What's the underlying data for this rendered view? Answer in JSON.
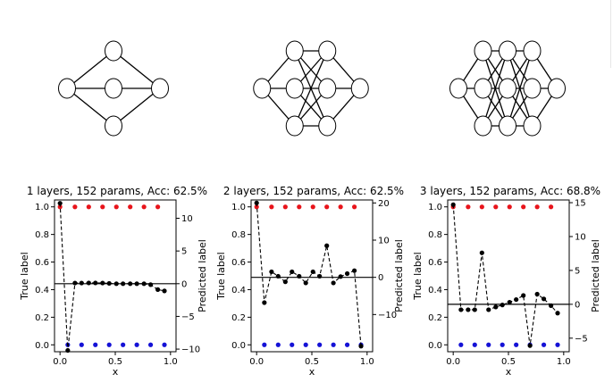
{
  "colors": {
    "line": "#000000",
    "true_class1": "#e8141b",
    "true_class0": "#1512d6",
    "pred_marker": "#000000",
    "node_fill": "#ffffff"
  },
  "networks": [
    {
      "layers": [
        1,
        3,
        1
      ]
    },
    {
      "layers": [
        1,
        3,
        3,
        1
      ]
    },
    {
      "layers": [
        1,
        3,
        3,
        3,
        1
      ]
    }
  ],
  "chart_data": [
    {
      "type": "scatter",
      "title": "1 layers, 152 params, Acc: 62.5%",
      "xlabel": "x",
      "ylabel": "True label",
      "y2label": "Predicted label",
      "xlim": [
        -0.05,
        1.05
      ],
      "ylim": [
        -0.05,
        1.05
      ],
      "y2lim": [
        -10.4,
        12.8
      ],
      "xticks": [
        "0.0",
        "0.5",
        "1.0"
      ],
      "xtick_values": [
        0.0,
        0.5,
        1.0
      ],
      "yticks": [
        "0.0",
        "0.2",
        "0.4",
        "0.6",
        "0.8",
        "1.0"
      ],
      "ytick_values": [
        0.0,
        0.2,
        0.4,
        0.6,
        0.8,
        1.0
      ],
      "y2ticks": [
        "−10",
        "−5",
        "0",
        "5",
        "10"
      ],
      "y2tick_values": [
        -10,
        -5,
        0,
        5,
        10
      ],
      "threshold": 0.0,
      "true_points": [
        {
          "x": 0.0,
          "y": 1.0
        },
        {
          "x": 0.135,
          "y": 1.0
        },
        {
          "x": 0.26,
          "y": 1.0
        },
        {
          "x": 0.385,
          "y": 1.0
        },
        {
          "x": 0.51,
          "y": 1.0
        },
        {
          "x": 0.635,
          "y": 1.0
        },
        {
          "x": 0.76,
          "y": 1.0
        },
        {
          "x": 0.885,
          "y": 1.0
        },
        {
          "x": 0.07,
          "y": 0.0
        },
        {
          "x": 0.195,
          "y": 0.0
        },
        {
          "x": 0.32,
          "y": 0.0
        },
        {
          "x": 0.445,
          "y": 0.0
        },
        {
          "x": 0.57,
          "y": 0.0
        },
        {
          "x": 0.695,
          "y": 0.0
        },
        {
          "x": 0.82,
          "y": 0.0
        },
        {
          "x": 0.945,
          "y": 0.0
        }
      ],
      "predicted": {
        "x": [
          0.0,
          0.07,
          0.135,
          0.195,
          0.26,
          0.32,
          0.385,
          0.445,
          0.51,
          0.57,
          0.635,
          0.695,
          0.76,
          0.82,
          0.885,
          0.945
        ],
        "y": [
          12.3,
          -10.2,
          0.1,
          0.1,
          0.12,
          0.12,
          0.1,
          0.05,
          0.0,
          0.0,
          0.0,
          0.0,
          0.0,
          -0.15,
          -0.9,
          -1.1
        ]
      }
    },
    {
      "type": "scatter",
      "title": "2 layers, 152 params, Acc: 62.5%",
      "xlabel": "x",
      "ylabel": "True label",
      "y2label": "Predicted label",
      "xlim": [
        -0.05,
        1.05
      ],
      "ylim": [
        -0.05,
        1.05
      ],
      "y2lim": [
        -20.0,
        20.8
      ],
      "xticks": [
        "0.0",
        "0.5",
        "1.0"
      ],
      "xtick_values": [
        0.0,
        0.5,
        1.0
      ],
      "yticks": [
        "0.0",
        "0.2",
        "0.4",
        "0.6",
        "0.8",
        "1.0"
      ],
      "ytick_values": [
        0.0,
        0.2,
        0.4,
        0.6,
        0.8,
        1.0
      ],
      "y2ticks": [
        "−10",
        "0",
        "10",
        "20"
      ],
      "y2tick_values": [
        -10,
        0,
        10,
        20
      ],
      "threshold": 0.0,
      "true_points": [
        {
          "x": 0.0,
          "y": 1.0
        },
        {
          "x": 0.135,
          "y": 1.0
        },
        {
          "x": 0.26,
          "y": 1.0
        },
        {
          "x": 0.385,
          "y": 1.0
        },
        {
          "x": 0.51,
          "y": 1.0
        },
        {
          "x": 0.635,
          "y": 1.0
        },
        {
          "x": 0.76,
          "y": 1.0
        },
        {
          "x": 0.885,
          "y": 1.0
        },
        {
          "x": 0.07,
          "y": 0.0
        },
        {
          "x": 0.195,
          "y": 0.0
        },
        {
          "x": 0.32,
          "y": 0.0
        },
        {
          "x": 0.445,
          "y": 0.0
        },
        {
          "x": 0.57,
          "y": 0.0
        },
        {
          "x": 0.695,
          "y": 0.0
        },
        {
          "x": 0.82,
          "y": 0.0
        },
        {
          "x": 0.945,
          "y": 0.0
        }
      ],
      "predicted": {
        "x": [
          0.0,
          0.07,
          0.135,
          0.195,
          0.26,
          0.32,
          0.385,
          0.445,
          0.51,
          0.57,
          0.635,
          0.695,
          0.76,
          0.82,
          0.885,
          0.945
        ],
        "y": [
          20.0,
          -6.8,
          1.5,
          0.3,
          -1.2,
          1.5,
          0.3,
          -1.5,
          1.5,
          0.3,
          8.5,
          -1.5,
          0.2,
          1.0,
          1.8,
          -18.5
        ]
      }
    },
    {
      "type": "scatter",
      "title": "3 layers, 152 params, Acc: 68.8%",
      "xlabel": "x",
      "ylabel": "True label",
      "y2label": "Predicted label",
      "xlim": [
        -0.05,
        1.05
      ],
      "ylim": [
        -0.05,
        1.05
      ],
      "y2lim": [
        -7.0,
        15.4
      ],
      "xticks": [
        "0.0",
        "0.5",
        "1.0"
      ],
      "xtick_values": [
        0.0,
        0.5,
        1.0
      ],
      "yticks": [
        "0.0",
        "0.2",
        "0.4",
        "0.6",
        "0.8",
        "1.0"
      ],
      "ytick_values": [
        0.0,
        0.2,
        0.4,
        0.6,
        0.8,
        1.0
      ],
      "y2ticks": [
        "−5",
        "0",
        "5",
        "10",
        "15"
      ],
      "y2tick_values": [
        -5,
        0,
        5,
        10,
        15
      ],
      "threshold": 0.0,
      "true_points": [
        {
          "x": 0.0,
          "y": 1.0
        },
        {
          "x": 0.135,
          "y": 1.0
        },
        {
          "x": 0.26,
          "y": 1.0
        },
        {
          "x": 0.385,
          "y": 1.0
        },
        {
          "x": 0.51,
          "y": 1.0
        },
        {
          "x": 0.635,
          "y": 1.0
        },
        {
          "x": 0.76,
          "y": 1.0
        },
        {
          "x": 0.885,
          "y": 1.0
        },
        {
          "x": 0.07,
          "y": 0.0
        },
        {
          "x": 0.195,
          "y": 0.0
        },
        {
          "x": 0.32,
          "y": 0.0
        },
        {
          "x": 0.445,
          "y": 0.0
        },
        {
          "x": 0.57,
          "y": 0.0
        },
        {
          "x": 0.695,
          "y": 0.0
        },
        {
          "x": 0.82,
          "y": 0.0
        },
        {
          "x": 0.945,
          "y": 0.0
        }
      ],
      "predicted": {
        "x": [
          0.0,
          0.07,
          0.135,
          0.195,
          0.26,
          0.32,
          0.385,
          0.445,
          0.51,
          0.57,
          0.635,
          0.695,
          0.76,
          0.82,
          0.885,
          0.945
        ],
        "y": [
          14.7,
          -0.8,
          -0.8,
          -0.8,
          7.6,
          -0.8,
          -0.4,
          -0.1,
          0.3,
          0.7,
          1.3,
          -6.1,
          1.5,
          0.8,
          -0.2,
          -1.3
        ]
      }
    }
  ]
}
